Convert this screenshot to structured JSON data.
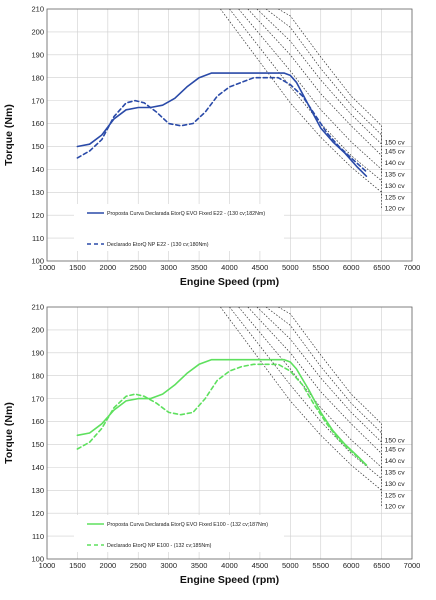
{
  "chart_data": [
    {
      "type": "line",
      "xlabel": "Engine Speed (rpm)",
      "ylabel": "Torque (Nm)",
      "xlim": [
        1000,
        7000
      ],
      "ylim": [
        100,
        210
      ],
      "xticks": [
        "1000",
        "1500",
        "2000",
        "2500",
        "3000",
        "3500",
        "4000",
        "4500",
        "5000",
        "5500",
        "6000",
        "6500",
        "7000"
      ],
      "yticks": [
        "100",
        "110",
        "120",
        "130",
        "140",
        "150",
        "160",
        "170",
        "180",
        "190",
        "200",
        "210"
      ],
      "grid": true,
      "legend_position": "bottom-left",
      "series": [
        {
          "name": "Proposta Curva Declarada EtorQ EVO Fixed E22  - (130 cv;182Nm)",
          "style": "solid",
          "color": "#2a4aa8",
          "x": [
            1500,
            1700,
            1900,
            2100,
            2300,
            2500,
            2700,
            2900,
            3100,
            3300,
            3500,
            3700,
            3900,
            4100,
            4300,
            4500,
            4700,
            4900,
            5000,
            5100,
            5300,
            5500,
            5700,
            5900,
            6100,
            6250
          ],
          "y": [
            150,
            151,
            155,
            162,
            166,
            167,
            167,
            168,
            171,
            176,
            180,
            182,
            182,
            182,
            182,
            182,
            182,
            182,
            181,
            178,
            168,
            158,
            152,
            147,
            141,
            137
          ]
        },
        {
          "name": "Declarado EtorQ NP  E22 - (130 cv;180Nm)",
          "style": "dashed",
          "color": "#2a4aa8",
          "x": [
            1500,
            1700,
            1900,
            2100,
            2300,
            2450,
            2600,
            2800,
            3000,
            3200,
            3400,
            3600,
            3800,
            4000,
            4200,
            4400,
            4600,
            4800,
            5000,
            5200,
            5400,
            5600,
            5800,
            6000,
            6250
          ],
          "y": [
            145,
            148,
            153,
            163,
            169,
            170,
            169,
            165,
            160,
            159,
            160,
            165,
            172,
            176,
            178,
            180,
            180,
            180,
            177,
            172,
            164,
            156,
            150,
            145,
            139
          ]
        }
      ],
      "power_curves": [
        {
          "label": "150 cv",
          "x": [
            4800,
            5000,
            5500,
            6000,
            6500,
            6500
          ],
          "y": [
            210,
            207,
            189,
            172,
            159,
            152
          ]
        },
        {
          "label": "145 cv",
          "x": [
            4600,
            5000,
            5500,
            6000,
            6500,
            6500
          ],
          "y": [
            210,
            202,
            184,
            168,
            155,
            148
          ]
        },
        {
          "label": "140 cv",
          "x": [
            4450,
            5000,
            5500,
            6000,
            6500,
            6500
          ],
          "y": [
            210,
            196,
            179,
            164,
            151,
            143
          ]
        },
        {
          "label": "135 cv",
          "x": [
            4300,
            5000,
            5500,
            6000,
            6500,
            6500
          ],
          "y": [
            210,
            190,
            173,
            159,
            146,
            138
          ]
        },
        {
          "label": "130 cv",
          "x": [
            4150,
            5000,
            5500,
            6000,
            6500,
            6500
          ],
          "y": [
            210,
            183,
            166,
            152,
            140,
            133
          ]
        },
        {
          "label": "125 cv",
          "x": [
            4000,
            5000,
            5500,
            6000,
            6500,
            6500
          ],
          "y": [
            210,
            176,
            160,
            146,
            135,
            128
          ]
        },
        {
          "label": "120 cv",
          "x": [
            3850,
            5000,
            5500,
            6000,
            6500,
            6500
          ],
          "y": [
            210,
            169,
            154,
            141,
            130,
            123
          ]
        }
      ]
    },
    {
      "type": "line",
      "xlabel": "Engine Speed (rpm)",
      "ylabel": "Torque (Nm)",
      "xlim": [
        1000,
        7000
      ],
      "ylim": [
        100,
        210
      ],
      "xticks": [
        "1000",
        "1500",
        "2000",
        "2500",
        "3000",
        "3500",
        "4000",
        "4500",
        "5000",
        "5500",
        "6000",
        "6500",
        "7000"
      ],
      "yticks": [
        "100",
        "110",
        "120",
        "130",
        "140",
        "150",
        "160",
        "170",
        "180",
        "190",
        "200",
        "210"
      ],
      "grid": true,
      "legend_position": "bottom-left",
      "series": [
        {
          "name": "Proposta Curva Declarada EtorQ EVO Fixed E100  - (132 cv;187Nm)",
          "style": "solid",
          "color": "#5ee05e",
          "x": [
            1500,
            1700,
            1900,
            2100,
            2300,
            2500,
            2700,
            2900,
            3100,
            3300,
            3500,
            3700,
            3900,
            4100,
            4300,
            4500,
            4700,
            4900,
            5000,
            5100,
            5300,
            5500,
            5700,
            5900,
            6100,
            6250
          ],
          "y": [
            154,
            155,
            159,
            165,
            169,
            170,
            170,
            172,
            176,
            181,
            185,
            187,
            187,
            187,
            187,
            187,
            187,
            187,
            186,
            183,
            174,
            164,
            156,
            150,
            145,
            141
          ]
        },
        {
          "name": "Declarado EtorQ NP E100 - (132 cv;185Nm)",
          "style": "dashed",
          "color": "#5ee05e",
          "x": [
            1500,
            1700,
            1900,
            2100,
            2300,
            2450,
            2600,
            2800,
            3000,
            3200,
            3400,
            3600,
            3800,
            4000,
            4200,
            4400,
            4600,
            4800,
            5000,
            5200,
            5400,
            5600,
            5800,
            6000,
            6250
          ],
          "y": [
            148,
            151,
            157,
            166,
            171,
            172,
            171,
            168,
            164,
            163,
            164,
            170,
            178,
            182,
            184,
            185,
            185,
            185,
            182,
            176,
            167,
            159,
            152,
            147,
            141
          ]
        }
      ],
      "power_curves": [
        {
          "label": "150 cv",
          "x": [
            4800,
            5000,
            5500,
            6000,
            6500,
            6500
          ],
          "y": [
            210,
            207,
            189,
            172,
            159,
            152
          ]
        },
        {
          "label": "145 cv",
          "x": [
            4600,
            5000,
            5500,
            6000,
            6500,
            6500
          ],
          "y": [
            210,
            202,
            184,
            168,
            155,
            148
          ]
        },
        {
          "label": "140 cv",
          "x": [
            4450,
            5000,
            5500,
            6000,
            6500,
            6500
          ],
          "y": [
            210,
            196,
            179,
            164,
            151,
            143
          ]
        },
        {
          "label": "135 cv",
          "x": [
            4300,
            5000,
            5500,
            6000,
            6500,
            6500
          ],
          "y": [
            210,
            190,
            173,
            159,
            146,
            138
          ]
        },
        {
          "label": "130 cv",
          "x": [
            4150,
            5000,
            5500,
            6000,
            6500,
            6500
          ],
          "y": [
            210,
            183,
            166,
            152,
            140,
            133
          ]
        },
        {
          "label": "125 cv",
          "x": [
            4000,
            5000,
            5500,
            6000,
            6500,
            6500
          ],
          "y": [
            210,
            176,
            160,
            146,
            135,
            128
          ]
        },
        {
          "label": "120 cv",
          "x": [
            3850,
            5000,
            5500,
            6000,
            6500,
            6500
          ],
          "y": [
            210,
            169,
            154,
            141,
            130,
            123
          ]
        }
      ]
    }
  ]
}
